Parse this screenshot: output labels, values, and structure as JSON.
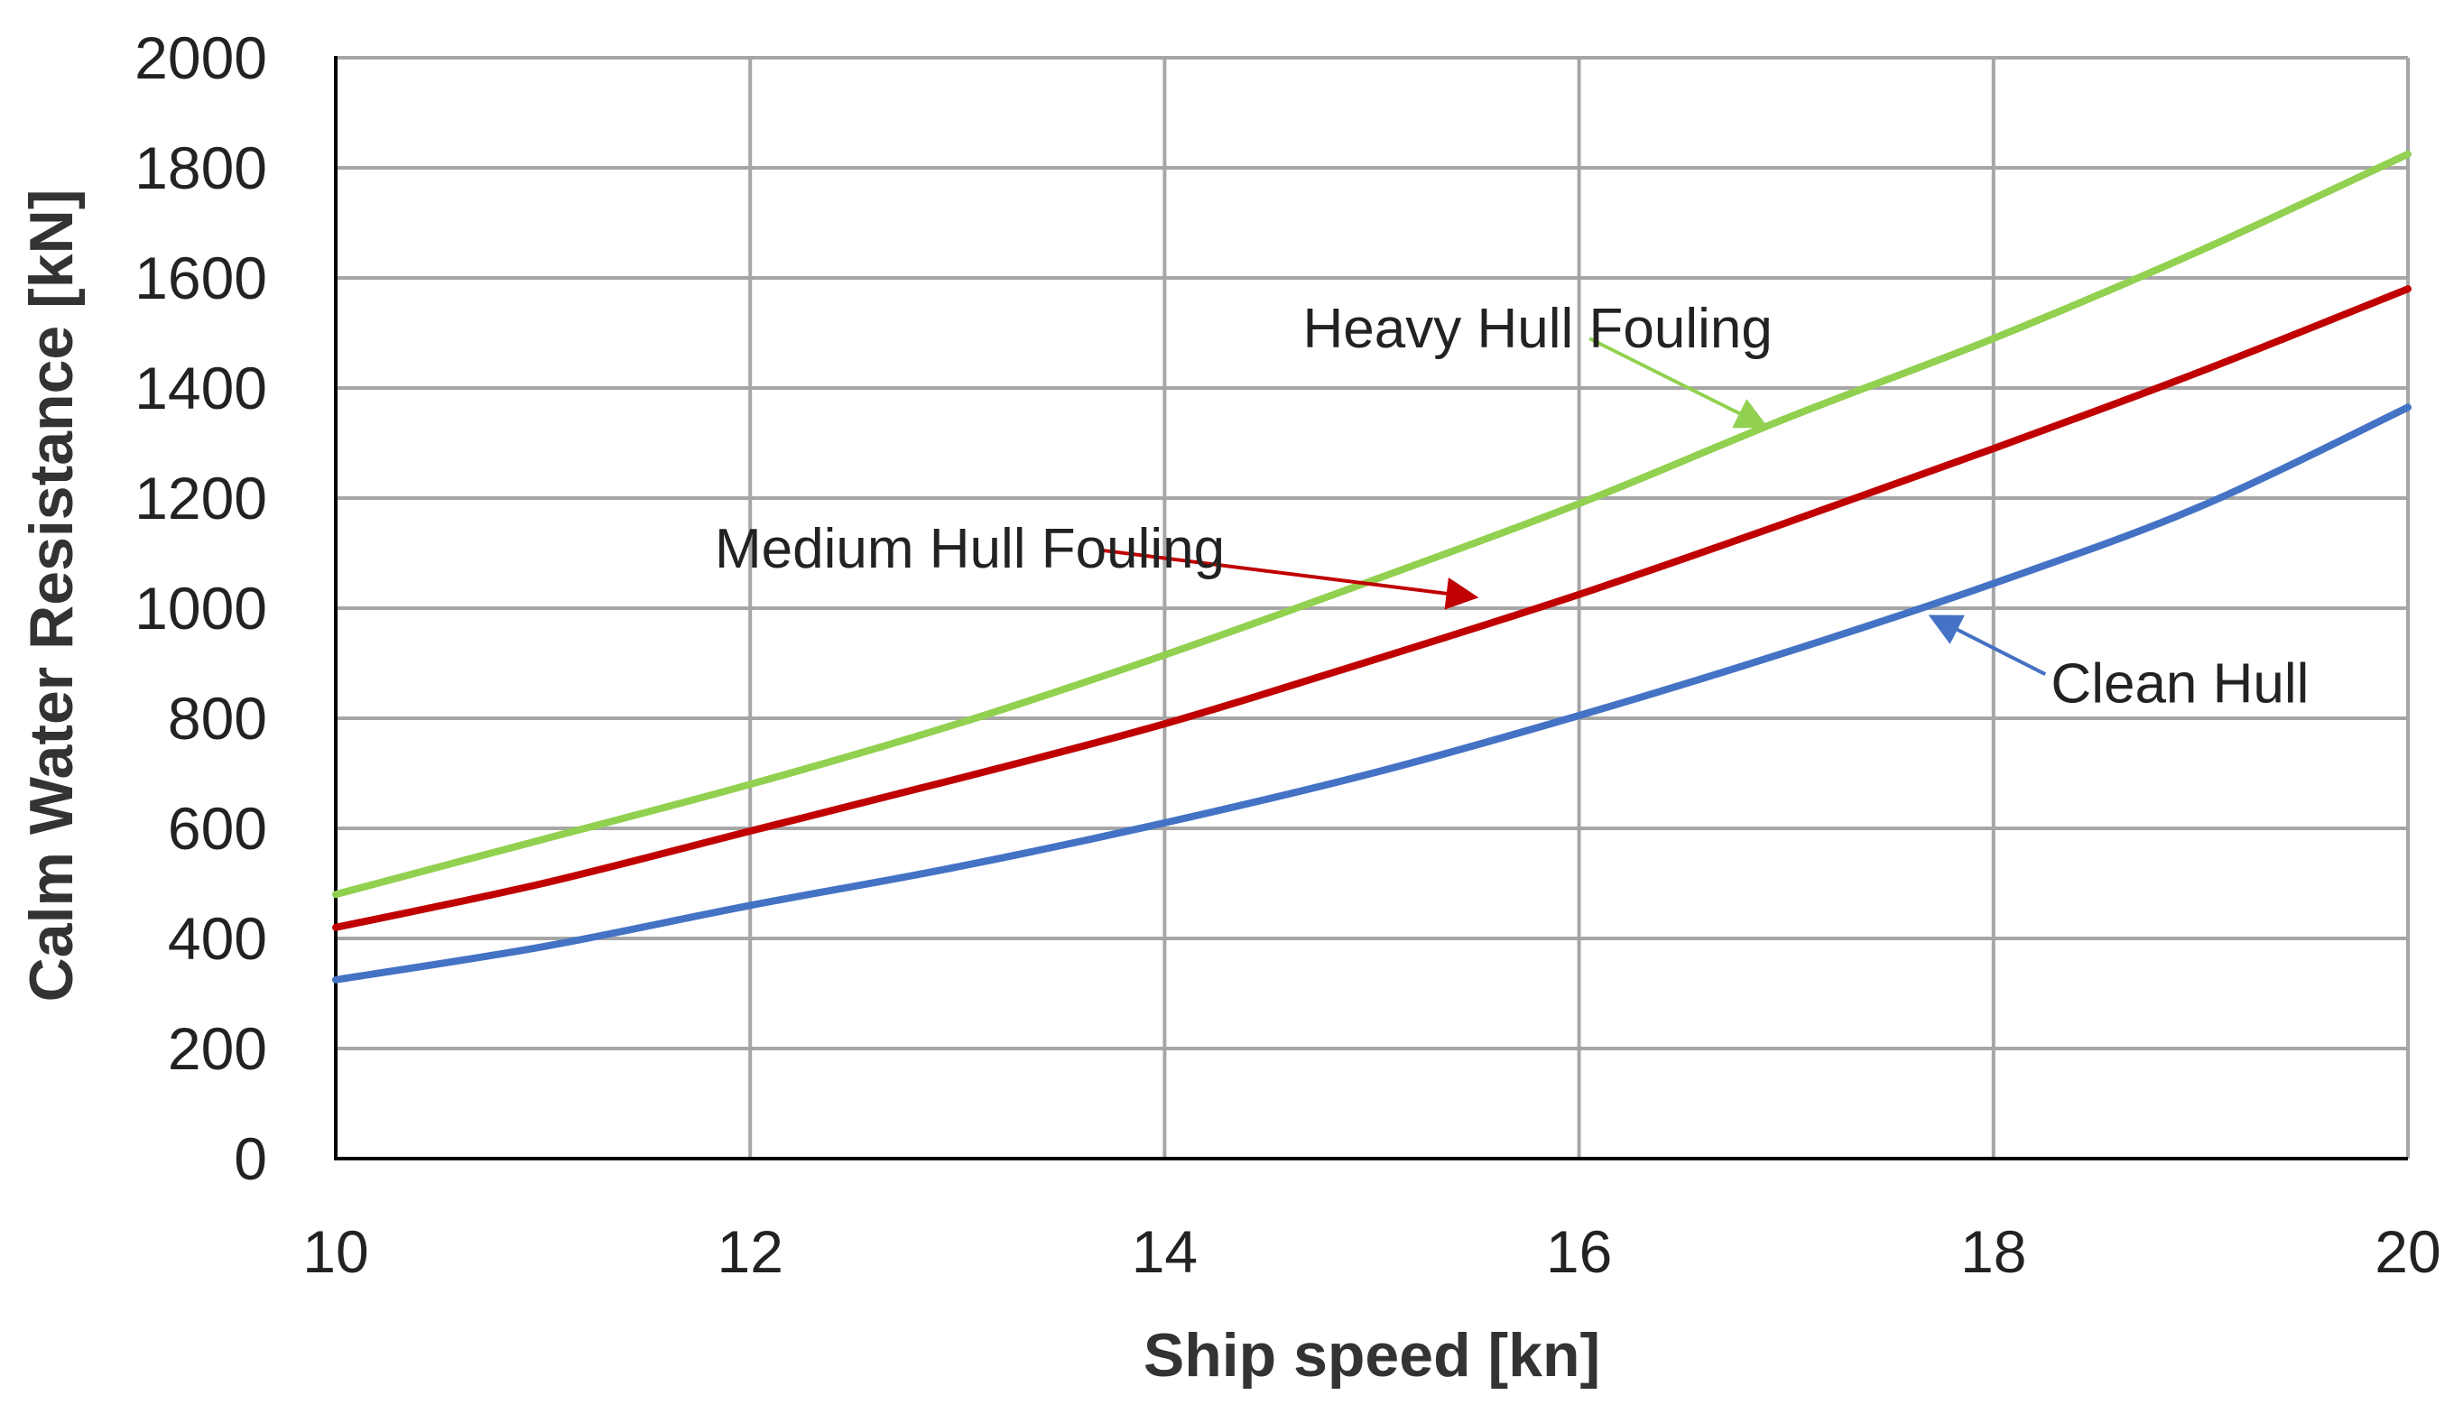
{
  "chart_data": {
    "type": "line",
    "title": "",
    "xlabel": "Ship speed [kn]",
    "ylabel": "Calm Water Resistance [kN]",
    "xlim": [
      10,
      20
    ],
    "ylim": [
      0,
      2000
    ],
    "x_ticks": [
      10,
      12,
      14,
      16,
      18,
      20
    ],
    "y_ticks": [
      0,
      200,
      400,
      600,
      800,
      1000,
      1200,
      1400,
      1600,
      1800,
      2000
    ],
    "grid": true,
    "legend": "none",
    "x": [
      10,
      11,
      12,
      13,
      14,
      15,
      16,
      17,
      18,
      19,
      20
    ],
    "series": [
      {
        "name": "Clean Hull",
        "color": "#4472C4",
        "values": [
          325,
          385,
          460,
          530,
          610,
          700,
          805,
          920,
          1045,
          1185,
          1365
        ]
      },
      {
        "name": "Medium Hull Fouling",
        "color": "#C00000",
        "values": [
          420,
          500,
          595,
          690,
          790,
          905,
          1025,
          1155,
          1290,
          1430,
          1580
        ]
      },
      {
        "name": "Heavy Hull Fouling",
        "color": "#92D050",
        "values": [
          480,
          580,
          680,
          790,
          915,
          1050,
          1190,
          1345,
          1490,
          1650,
          1825
        ]
      }
    ],
    "annotations": [
      {
        "text": "Heavy Hull Fouling",
        "series": "Heavy Hull Fouling",
        "color": "#92D050",
        "text_x": 15.8,
        "text_y": 1510,
        "arrow_from": [
          16.05,
          1490
        ],
        "arrow_to": [
          16.9,
          1330
        ]
      },
      {
        "text": "Medium Hull Fouling",
        "series": "Medium Hull Fouling",
        "color": "#C00000",
        "text_x": 13.06,
        "text_y": 1110,
        "arrow_from": [
          13.7,
          1105
        ],
        "arrow_to": [
          15.5,
          1020
        ]
      },
      {
        "text": "Clean Hull",
        "series": "Clean Hull",
        "color": "#4472C4",
        "text_x": 18.9,
        "text_y": 865,
        "arrow_from": [
          18.25,
          880
        ],
        "arrow_to": [
          17.7,
          985
        ]
      }
    ]
  }
}
